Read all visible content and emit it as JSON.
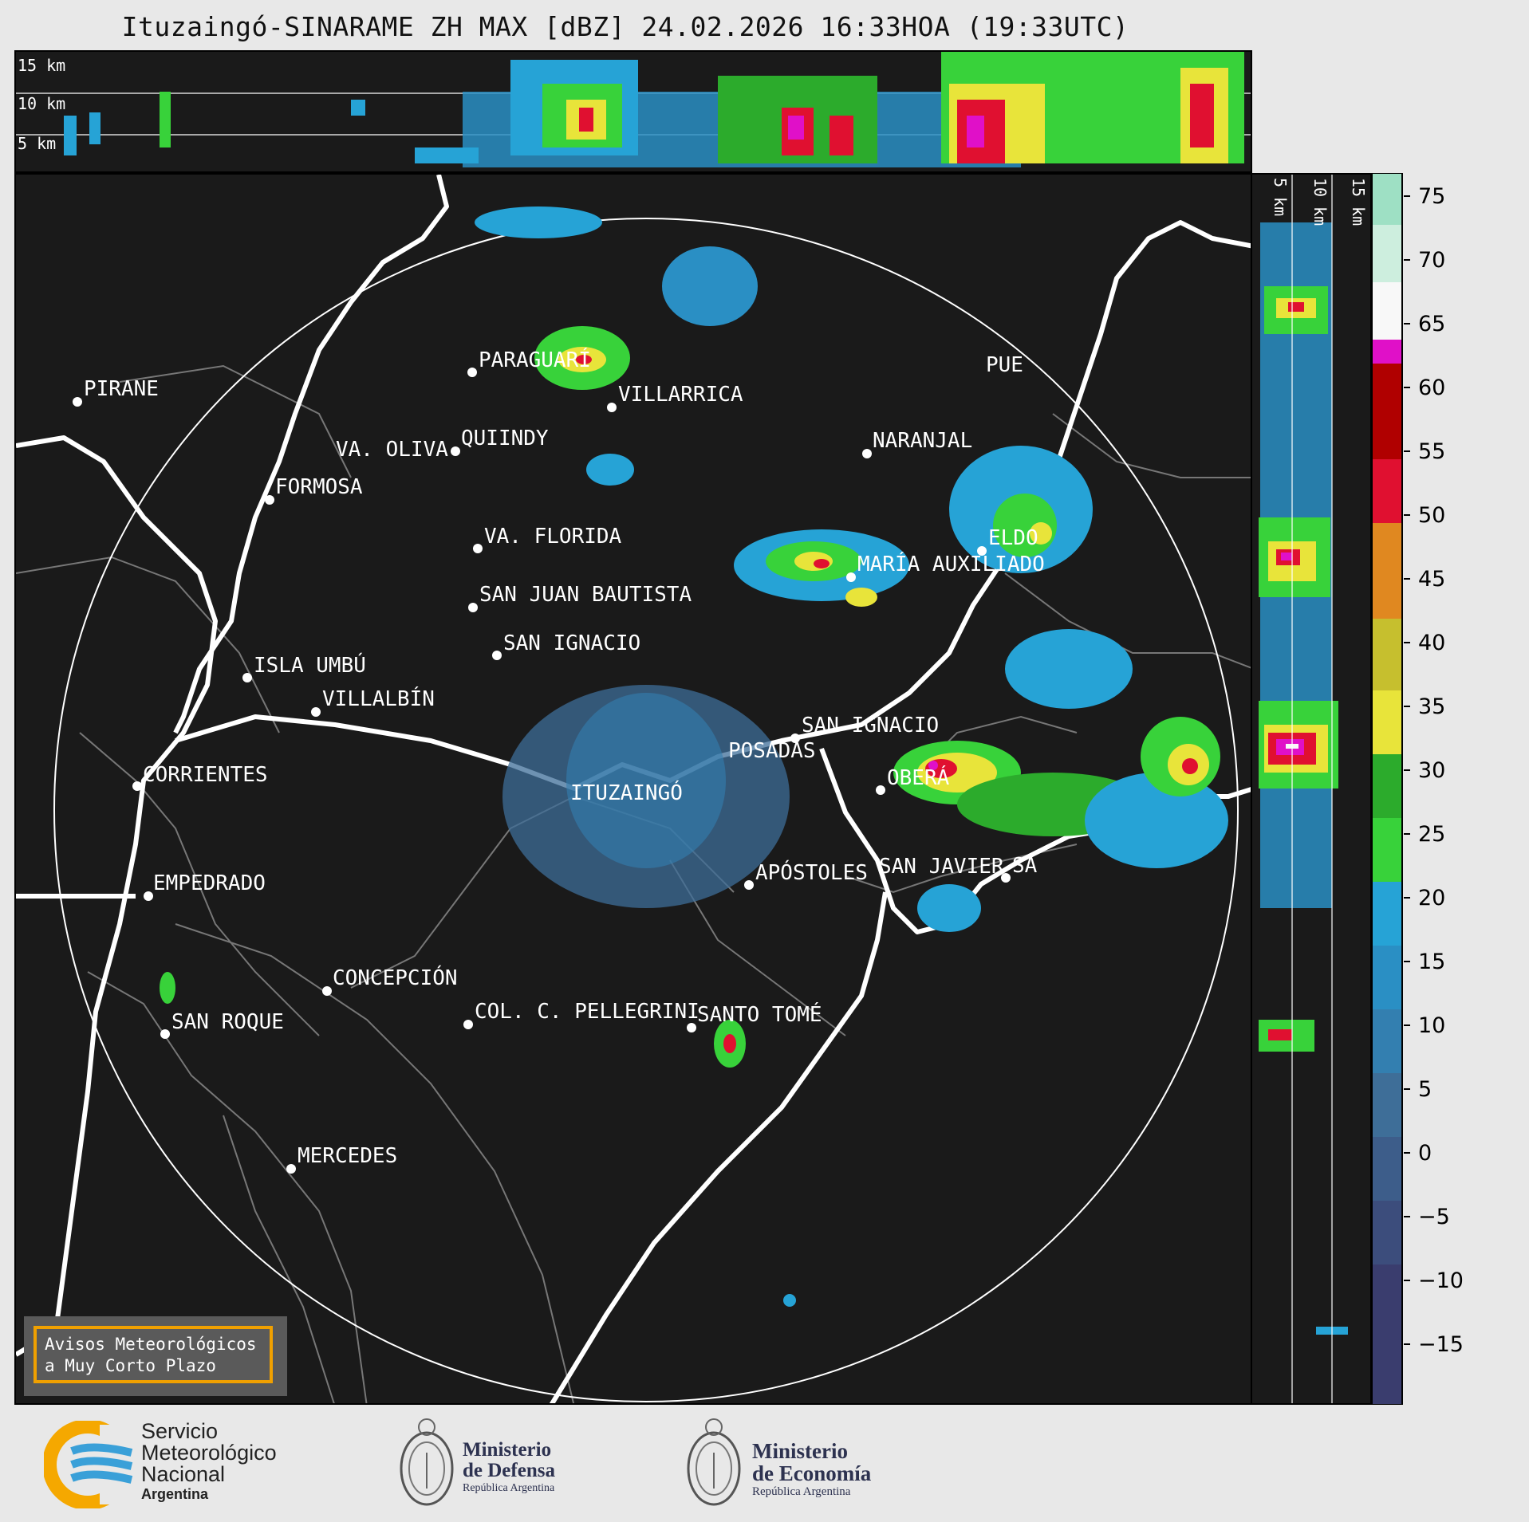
{
  "title": "Ituzaingó-SINARAME ZH MAX [dBZ] 24.02.2026 16:33HOA (19:33UTC)",
  "top_panel": {
    "height_labels": [
      "15 km",
      "10 km",
      "5 km"
    ]
  },
  "side_panel": {
    "height_labels": [
      "5 km",
      "10 km",
      "15 km"
    ]
  },
  "cities": [
    {
      "name": "PIRANE"
    },
    {
      "name": "PARAGUARÍ"
    },
    {
      "name": "VILLARRICA"
    },
    {
      "name": "PUE"
    },
    {
      "name": "QUIINDY"
    },
    {
      "name": "VA. OLIVA"
    },
    {
      "name": "NARANJAL"
    },
    {
      "name": "FORMOSA"
    },
    {
      "name": "VA. FLORIDA"
    },
    {
      "name": "ELDO"
    },
    {
      "name": "MARÍA AUXILIADO"
    },
    {
      "name": "SAN JUAN BAUTISTA"
    },
    {
      "name": "SAN IGNACIO"
    },
    {
      "name": "ISLA UMBÚ"
    },
    {
      "name": "VILLALBÍN"
    },
    {
      "name": "SAN IGNACIO"
    },
    {
      "name": "POSADAS"
    },
    {
      "name": "CORRIENTES"
    },
    {
      "name": "ITUZAINGÓ"
    },
    {
      "name": "OBERÁ"
    },
    {
      "name": "APÓSTOLES"
    },
    {
      "name": "SAN JAVIER"
    },
    {
      "name": "SA"
    },
    {
      "name": "EMPEDRADO"
    },
    {
      "name": "CONCEPCIÓN"
    },
    {
      "name": "COL. C. PELLEGRINI"
    },
    {
      "name": "SANTO TOMÉ"
    },
    {
      "name": "SAN ROQUE"
    },
    {
      "name": "MERCEDES"
    }
  ],
  "colorbar": {
    "ticks": [
      "75",
      "70",
      "65",
      "60",
      "55",
      "50",
      "45",
      "40",
      "35",
      "30",
      "25",
      "20",
      "15",
      "10",
      "5",
      "0",
      "−5",
      "−10",
      "−15"
    ],
    "colors": {
      "c-15": "#3a3d6e",
      "c-10": "#3c4d7c",
      "c-5": "#3d5d8a",
      "c0": "#3e6e98",
      "c5": "#337fb0",
      "c10": "#2a8fc4",
      "c15": "#26a3d6",
      "c20": "#38d23a",
      "c25": "#2cab2c",
      "c30": "#e8e43a",
      "c35": "#c6bf2e",
      "c40": "#e08820",
      "c45": "#e01030",
      "c50": "#b00000",
      "c55": "#e010c8",
      "c60": "#f8f8f8",
      "c65": "#cdeede",
      "c70": "#9ee0c4"
    }
  },
  "warning_box": {
    "line1": "Avisos Meteorológicos",
    "line2": "a Muy Corto Plazo"
  },
  "footer": {
    "smn": {
      "line1": "Servicio",
      "line2": "Meteorológico",
      "line3": "Nacional",
      "line4": "Argentina"
    },
    "defensa": {
      "line1": "Ministerio",
      "line2": "de Defensa",
      "line3": "República Argentina"
    },
    "economia": {
      "line1": "Ministerio",
      "line2": "de Economía",
      "line3": "República Argentina"
    }
  }
}
